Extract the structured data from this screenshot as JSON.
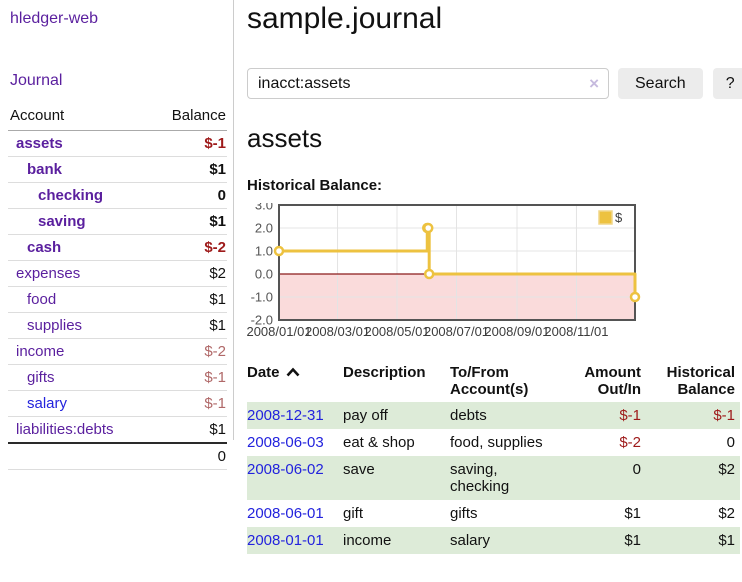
{
  "colors": {
    "link_purple": "#5a1f9e",
    "link_blue": "#2323dd",
    "negative_red": "#9e1a1a",
    "muted_negative": "#b06868",
    "row_stripe_green": "#ddebd8",
    "chart_series_gold": "#edc240",
    "chart_border": "#545454",
    "chart_grid": "#e4e4e4",
    "chart_zero_line": "#8b1a1a",
    "chart_negative_region": "#fadbdb",
    "button_bg": "#ececec"
  },
  "sidebar": {
    "brand": "hledger-web",
    "nav": [
      {
        "label": "Journal"
      }
    ],
    "accounts_table": {
      "headers": [
        "Account",
        "Balance"
      ],
      "rows": [
        {
          "name": "assets",
          "balance": "$-1",
          "indent": 0,
          "bold": true,
          "balance_style": "neg"
        },
        {
          "name": "bank",
          "balance": "$1",
          "indent": 1,
          "bold": true,
          "balance_style": ""
        },
        {
          "name": "checking",
          "balance": "0",
          "indent": 2,
          "bold": true,
          "balance_style": ""
        },
        {
          "name": "saving",
          "balance": "$1",
          "indent": 2,
          "bold": true,
          "balance_style": ""
        },
        {
          "name": "cash",
          "balance": "$-2",
          "indent": 1,
          "bold": true,
          "balance_style": "neg"
        },
        {
          "name": "expenses",
          "balance": "$2",
          "indent": 0,
          "bold": false,
          "balance_style": ""
        },
        {
          "name": "food",
          "balance": "$1",
          "indent": 1,
          "bold": false,
          "balance_style": ""
        },
        {
          "name": "supplies",
          "balance": "$1",
          "indent": 1,
          "bold": false,
          "balance_style": ""
        },
        {
          "name": "income",
          "balance": "$-2",
          "indent": 0,
          "bold": false,
          "balance_style": "mneg"
        },
        {
          "name": "gifts",
          "balance": "$-1",
          "indent": 1,
          "bold": false,
          "balance_style": "mneg"
        },
        {
          "name": "salary",
          "balance": "$-1",
          "indent": 1,
          "bold": false,
          "balance_style": "mneg",
          "link_color": "blue"
        },
        {
          "name": "liabilities:debts",
          "balance": "$1",
          "indent": 0,
          "bold": false,
          "balance_style": ""
        }
      ],
      "total": "0"
    }
  },
  "header": {
    "title": "sample.journal"
  },
  "search": {
    "value": "inacct:assets",
    "clear_icon": "×",
    "button": "Search",
    "help_button": "?"
  },
  "account_page": {
    "heading": "assets",
    "chart_label": "Historical Balance:"
  },
  "chart_data": {
    "type": "line",
    "title": "Historical Balance",
    "line_style": "step-after",
    "series": [
      {
        "name": "$",
        "color": "#edc240",
        "points": [
          {
            "date": "2008-01-01",
            "value": 1
          },
          {
            "date": "2008-06-01",
            "value": 2
          },
          {
            "date": "2008-06-02",
            "value": 2
          },
          {
            "date": "2008-06-03",
            "value": 0
          },
          {
            "date": "2008-12-31",
            "value": -1
          }
        ]
      }
    ],
    "x_range": [
      "2008-01-01",
      "2008-12-31"
    ],
    "x_ticks": [
      "2008/01/01",
      "2008/03/01",
      "2008/05/01",
      "2008/07/01",
      "2008/09/01",
      "2008/11/01"
    ],
    "y_ticks": [
      3.0,
      2.0,
      1.0,
      0.0,
      -1.0,
      -2.0
    ],
    "ylim": [
      -2,
      3
    ],
    "grid": true,
    "legend": {
      "label": "$",
      "position": "top-right"
    },
    "zero_line_color": "#8b1a1a",
    "negative_region_color": "#fadbdb"
  },
  "register_table": {
    "headers": [
      "Date",
      "Description",
      "To/From Account(s)",
      "Amount Out/In",
      "Historical Balance"
    ],
    "sort_column": "Date",
    "sort_direction": "ascending",
    "rows": [
      {
        "date": "2008-12-31",
        "description": "pay off",
        "accounts": "debts",
        "amount": "$-1",
        "amount_style": "neg",
        "balance": "$-1",
        "balance_style": "neg"
      },
      {
        "date": "2008-06-03",
        "description": "eat & shop",
        "accounts": "food, supplies",
        "amount": "$-2",
        "amount_style": "neg",
        "balance": "0",
        "balance_style": ""
      },
      {
        "date": "2008-06-02",
        "description": "save",
        "accounts": "saving, checking",
        "amount": "0",
        "amount_style": "",
        "balance": "$2",
        "balance_style": ""
      },
      {
        "date": "2008-06-01",
        "description": "gift",
        "accounts": "gifts",
        "amount": "$1",
        "amount_style": "",
        "balance": "$2",
        "balance_style": ""
      },
      {
        "date": "2008-01-01",
        "description": "income",
        "accounts": "salary",
        "amount": "$1",
        "amount_style": "",
        "balance": "$1",
        "balance_style": ""
      }
    ]
  }
}
